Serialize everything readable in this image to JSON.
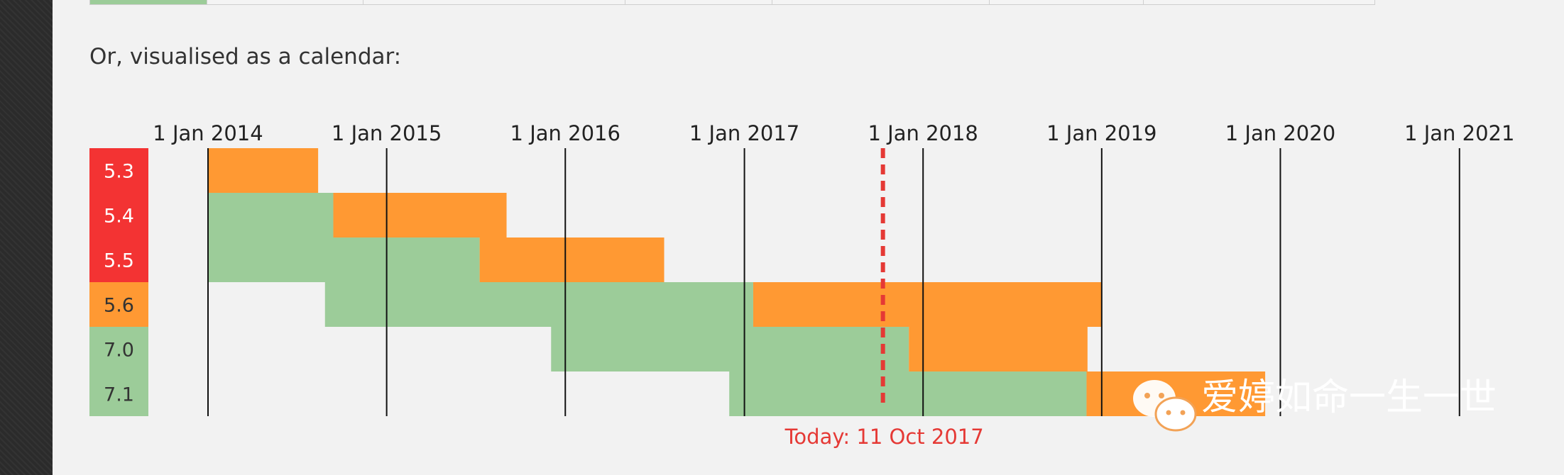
{
  "intro_text": "Or, visualised as a calendar:",
  "colors": {
    "security_fixes": "#ff9933",
    "active_support": "#9ccc99",
    "end_of_life": "#f33333",
    "today_line": "#e53935"
  },
  "chart_data": {
    "type": "gantt",
    "title": "",
    "x_axis": {
      "type": "date",
      "range": [
        "2013-05-01",
        "2021-04-01"
      ],
      "ticks": [
        "2014-01-01",
        "2015-01-01",
        "2016-01-01",
        "2017-01-01",
        "2018-01-01",
        "2019-01-01",
        "2020-01-01",
        "2021-01-01"
      ],
      "tick_labels": [
        "1 Jan 2014",
        "1 Jan 2015",
        "1 Jan 2016",
        "1 Jan 2017",
        "1 Jan 2018",
        "1 Jan 2019",
        "1 Jan 2020",
        "1 Jan 2021"
      ]
    },
    "today": {
      "date": "2017-10-11",
      "label": "Today: 11 Oct 2017"
    },
    "rows": [
      {
        "version": "5.3",
        "status": "end_of_life",
        "active": null,
        "security": [
          "2014-01-01",
          "2014-08-14"
        ]
      },
      {
        "version": "5.4",
        "status": "end_of_life",
        "active": [
          "2014-01-01",
          "2014-09-14"
        ],
        "security": [
          "2014-09-14",
          "2015-09-03"
        ]
      },
      {
        "version": "5.5",
        "status": "end_of_life",
        "active": [
          "2014-01-01",
          "2015-07-10"
        ],
        "security": [
          "2015-07-10",
          "2016-07-21"
        ]
      },
      {
        "version": "5.6",
        "status": "security_fixes",
        "active": [
          "2014-08-28",
          "2017-01-19"
        ],
        "security": [
          "2017-01-19",
          "2018-12-31"
        ]
      },
      {
        "version": "7.0",
        "status": "active_support",
        "active": [
          "2015-12-03",
          "2017-12-03"
        ],
        "security": [
          "2017-12-03",
          "2018-12-03"
        ]
      },
      {
        "version": "7.1",
        "status": "active_support",
        "active": [
          "2016-12-01",
          "2018-12-01"
        ],
        "security": [
          "2018-12-01",
          "2019-12-01"
        ]
      }
    ]
  },
  "watermark": {
    "icon": "wechat-icon",
    "text": "爱婷如命一生一世"
  }
}
